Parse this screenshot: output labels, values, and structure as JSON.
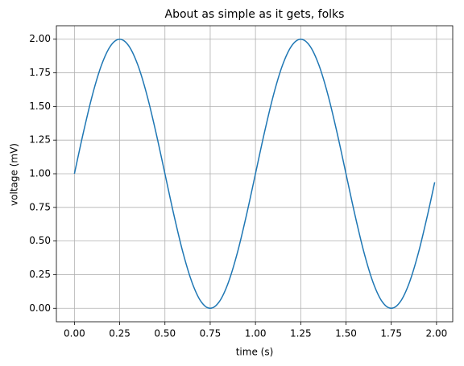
{
  "chart_data": {
    "type": "line",
    "title": "About as simple as it gets, folks",
    "x_label": "time (s)",
    "y_label": "voltage (mV)",
    "x": [
      0,
      0.05,
      0.1,
      0.15,
      0.2,
      0.25,
      0.3,
      0.35,
      0.4,
      0.45,
      0.5,
      0.55,
      0.6,
      0.65,
      0.7,
      0.75,
      0.8,
      0.85,
      0.9,
      0.95,
      1,
      1.05,
      1.1,
      1.15,
      1.2,
      1.25,
      1.3,
      1.35,
      1.4,
      1.45,
      1.5,
      1.55,
      1.6,
      1.65,
      1.7,
      1.75,
      1.8,
      1.85,
      1.9,
      1.95,
      1.99
    ],
    "series": [
      {
        "color": "#1f77b4",
        "values": [
          1,
          1.309,
          1.588,
          1.809,
          1.951,
          2,
          1.951,
          1.809,
          1.588,
          1.309,
          1,
          0.691,
          0.412,
          0.191,
          0.049,
          0,
          0.049,
          0.191,
          0.412,
          0.691,
          1,
          1.309,
          1.588,
          1.809,
          1.951,
          2,
          1.951,
          1.809,
          1.588,
          1.309,
          1,
          0.691,
          0.412,
          0.191,
          0.049,
          0,
          0.049,
          0.191,
          0.412,
          0.691,
          0.937
        ]
      }
    ],
    "xlim": [
      -0.0995,
      2.0895
    ],
    "ylim": [
      -0.1,
      2.1
    ],
    "xticks": [
      {
        "value": 0,
        "label": "0.00"
      },
      {
        "value": 0.25,
        "label": "0.25"
      },
      {
        "value": 0.5,
        "label": "0.50"
      },
      {
        "value": 0.75,
        "label": "0.75"
      },
      {
        "value": 1,
        "label": "1.00"
      },
      {
        "value": 1.25,
        "label": "1.25"
      },
      {
        "value": 1.5,
        "label": "1.50"
      },
      {
        "value": 1.75,
        "label": "1.75"
      },
      {
        "value": 2,
        "label": "2.00"
      }
    ],
    "yticks": [
      {
        "value": 0,
        "label": "0.00"
      },
      {
        "value": 0.25,
        "label": "0.25"
      },
      {
        "value": 0.5,
        "label": "0.50"
      },
      {
        "value": 0.75,
        "label": "0.75"
      },
      {
        "value": 1,
        "label": "1.00"
      },
      {
        "value": 1.25,
        "label": "1.25"
      },
      {
        "value": 1.5,
        "label": "1.50"
      },
      {
        "value": 1.75,
        "label": "1.75"
      },
      {
        "value": 2,
        "label": "2.00"
      }
    ],
    "grid": true
  }
}
